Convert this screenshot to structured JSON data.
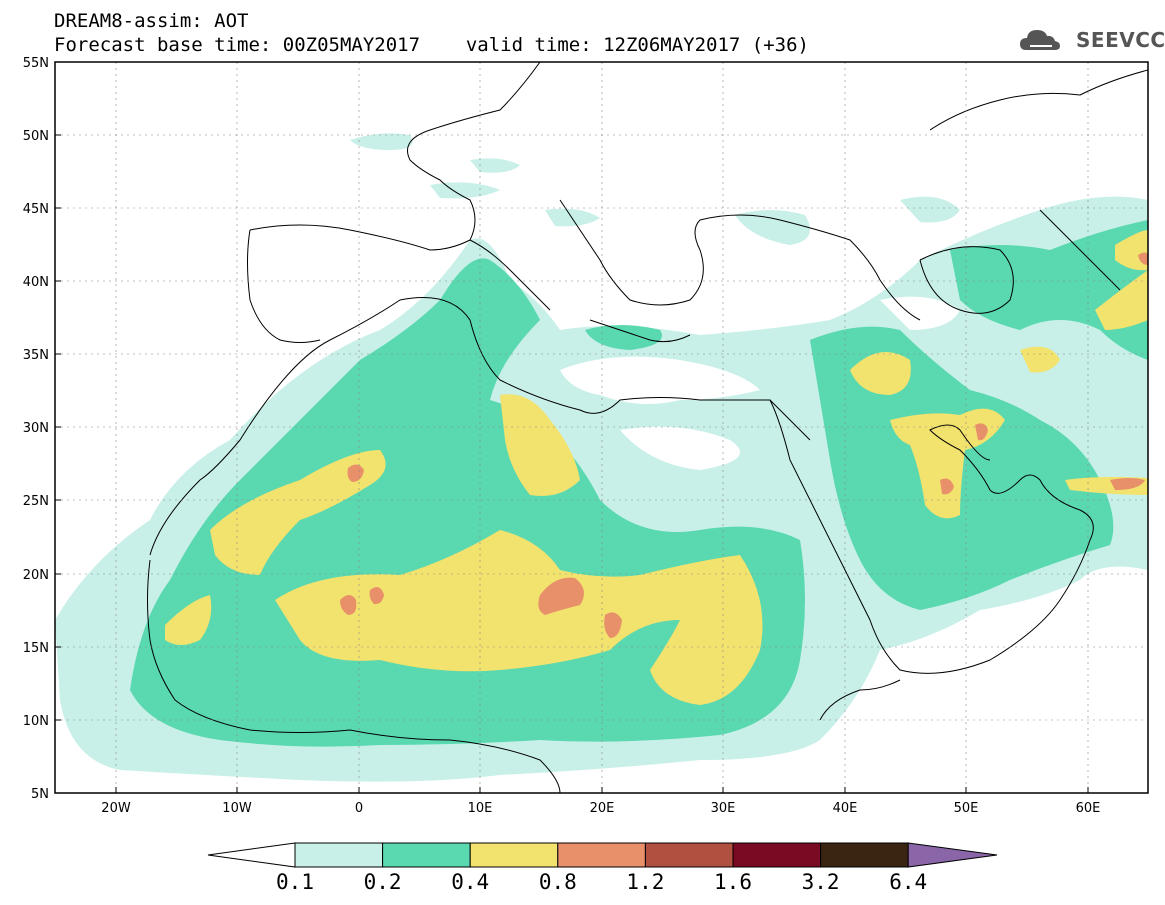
{
  "header": {
    "title": "DREAM8-assim: AOT",
    "base_time": "Forecast base time: 00Z05MAY2017",
    "valid_time": "valid time: 12Z06MAY2017 (+36)"
  },
  "logo": {
    "text": "SEEVCCC",
    "icon": "cloud-icon"
  },
  "map": {
    "lon_range": [
      -25,
      65
    ],
    "lat_range": [
      5,
      55
    ],
    "lon_ticks": [
      "20W",
      "10W",
      "0",
      "10E",
      "20E",
      "30E",
      "40E",
      "50E",
      "60E"
    ],
    "lat_ticks": [
      "55N",
      "50N",
      "45N",
      "40N",
      "35N",
      "30N",
      "25N",
      "20N",
      "15N",
      "10N",
      "5N"
    ]
  },
  "colorbar": {
    "labels": [
      "0.1",
      "0.2",
      "0.4",
      "0.8",
      "1.2",
      "1.6",
      "3.2",
      "6.4"
    ],
    "colors": [
      "#c8f0e8",
      "#5ad8b0",
      "#f2e26e",
      "#e8906a",
      "#b05040",
      "#7a0a24",
      "#3a2412",
      "#8a66a8"
    ]
  },
  "chart_data": {
    "type": "heatmap",
    "title": "DREAM8-assim: AOT",
    "variable": "AOT",
    "levels": [
      0.1,
      0.2,
      0.4,
      0.8,
      1.2,
      1.6,
      3.2,
      6.4
    ],
    "xlim": [
      -25,
      65
    ],
    "ylim": [
      5,
      55
    ]
  }
}
